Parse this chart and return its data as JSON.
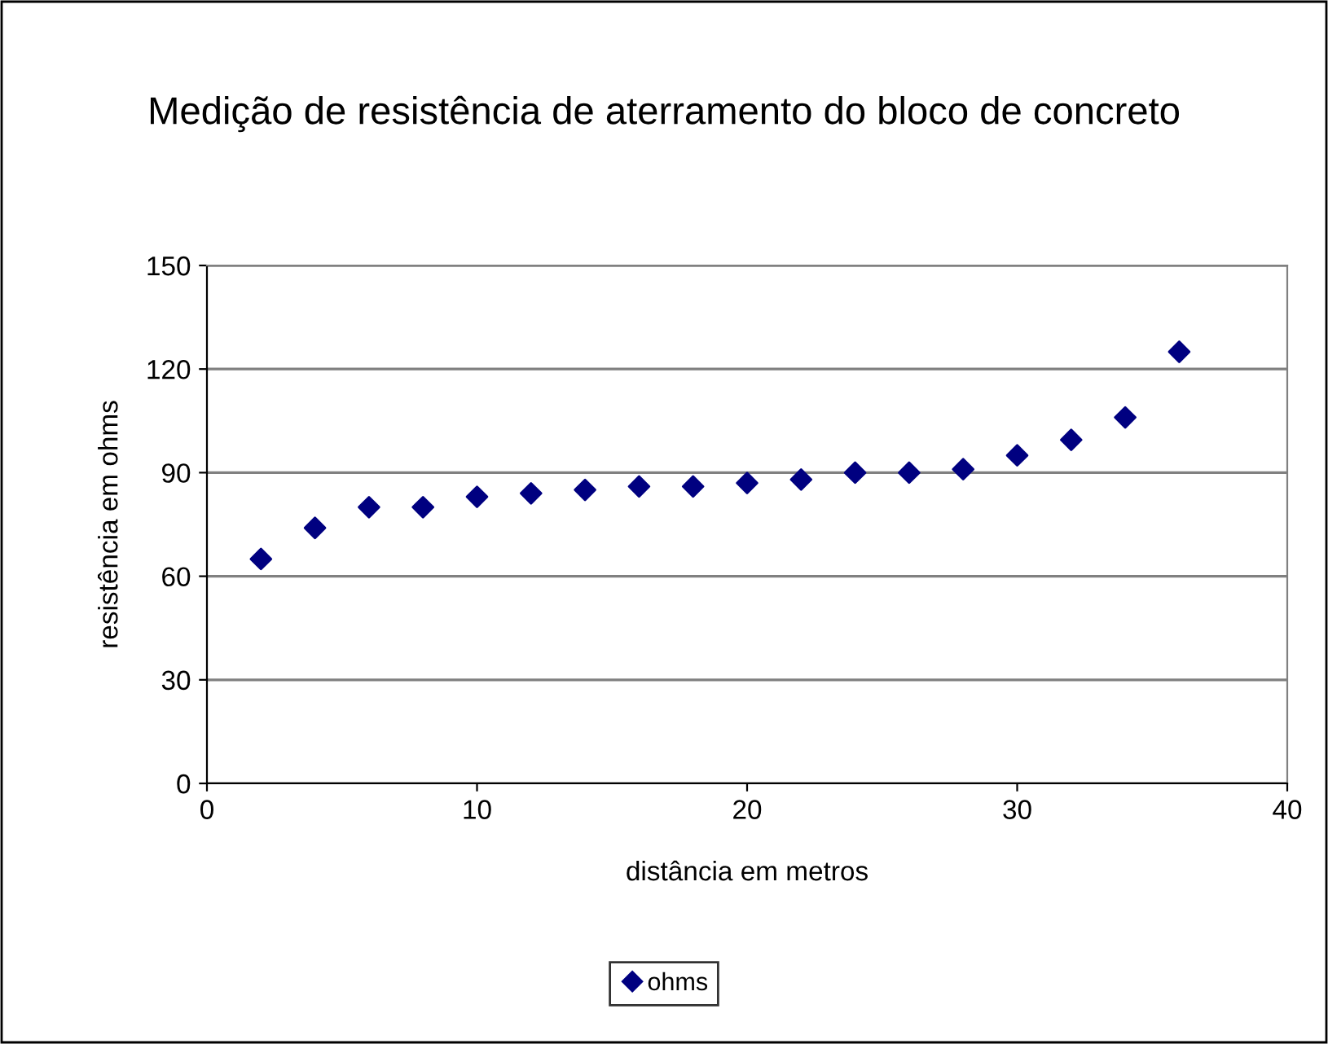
{
  "chart_data": {
    "type": "scatter",
    "title": "Medição de resistência de aterramento do bloco de concreto",
    "xlabel": "distância em metros",
    "ylabel": "resistência em ohms",
    "series": [
      {
        "name": "ohms",
        "color": "#000080",
        "x": [
          2,
          4,
          6,
          8,
          10,
          12,
          14,
          16,
          18,
          20,
          22,
          24,
          26,
          28,
          30,
          32,
          34,
          36
        ],
        "values": [
          65,
          74,
          80,
          80,
          83,
          84,
          85,
          86,
          86,
          87,
          88,
          90,
          90,
          91,
          95,
          99.5,
          106,
          125
        ]
      }
    ],
    "xlim": [
      0,
      40
    ],
    "xticks": [
      0,
      10,
      20,
      30,
      40
    ],
    "ylim": [
      0,
      150
    ],
    "yticks": [
      0,
      30,
      60,
      90,
      120,
      150
    ],
    "grid": "y",
    "legend": "bottom",
    "marker": "diamond"
  }
}
